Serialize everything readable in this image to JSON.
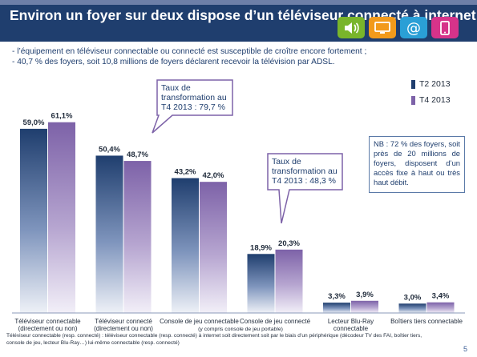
{
  "header": {
    "title": "Environ un foyer sur deux dispose d’un téléviseur connecté à internet",
    "icons": [
      {
        "name": "speaker-icon",
        "color": "#79b52b"
      },
      {
        "name": "monitor-icon",
        "color": "#f29a1b"
      },
      {
        "name": "at-sign-icon",
        "color": "#2a9fd6"
      },
      {
        "name": "tablet-icon",
        "color": "#d6338a"
      }
    ]
  },
  "bullets": [
    "- l’équipement en téléviseur connectable ou connecté est susceptible de croître encore fortement ;",
    "- 40,7 % des foyers, soit 10,8 millions de foyers déclarent recevoir la télévision par ADSL."
  ],
  "callouts": [
    {
      "lines": [
        "Taux de",
        "transformation au",
        "T4 2013 : 79,7 %"
      ]
    },
    {
      "lines": [
        "Taux de",
        "transformation au",
        "T4 2013 : 48,3 %"
      ]
    }
  ],
  "nb": "NB : 72 % des foyers, soit près de 20 millions de foyers, disposent d’un accès fixe à haut ou très haut débit.",
  "footnote": "Téléviseur connectable (resp. connecté) : téléviseur connectable (resp. connecté) à internet soit directement soit par le biais d’un périphérique (décodeur TV des FAI, boîtier tiers, console de jeu, lecteur Blu-Ray…) lui-même connectable (resp. connecté)",
  "page_number": "5",
  "colors": {
    "t2_dark": "#1f3e6e",
    "t4_dark": "#7d62a8",
    "header": "#1f3e6e"
  },
  "chart_data": {
    "type": "bar",
    "categories": [
      [
        "Téléviseur connectable",
        "(directement ou non)"
      ],
      [
        "Téléviseur connecté",
        "(directement ou non)"
      ],
      [
        "Console de jeu connectable"
      ],
      [
        "Console de jeu connecté"
      ],
      [
        "Lecteur Blu-Ray",
        "connectable"
      ],
      [
        "Boîtiers tiers connectable"
      ]
    ],
    "category_note": "(y compris console de jeu portable)",
    "series": [
      {
        "name": "T2 2013",
        "values": [
          59.0,
          50.4,
          43.2,
          18.9,
          3.3,
          3.0
        ],
        "labels": [
          "59,0%",
          "50,4%",
          "43,2%",
          "18,9%",
          "3,3%",
          "3,0%"
        ]
      },
      {
        "name": "T4 2013",
        "values": [
          61.1,
          48.7,
          42.0,
          20.3,
          3.9,
          3.4
        ],
        "labels": [
          "61,1%",
          "48,7%",
          "42,0%",
          "20,3%",
          "3,9%",
          "3,4%"
        ]
      }
    ],
    "ylim": [
      0,
      70
    ],
    "legend": "top-right",
    "grid": false
  }
}
